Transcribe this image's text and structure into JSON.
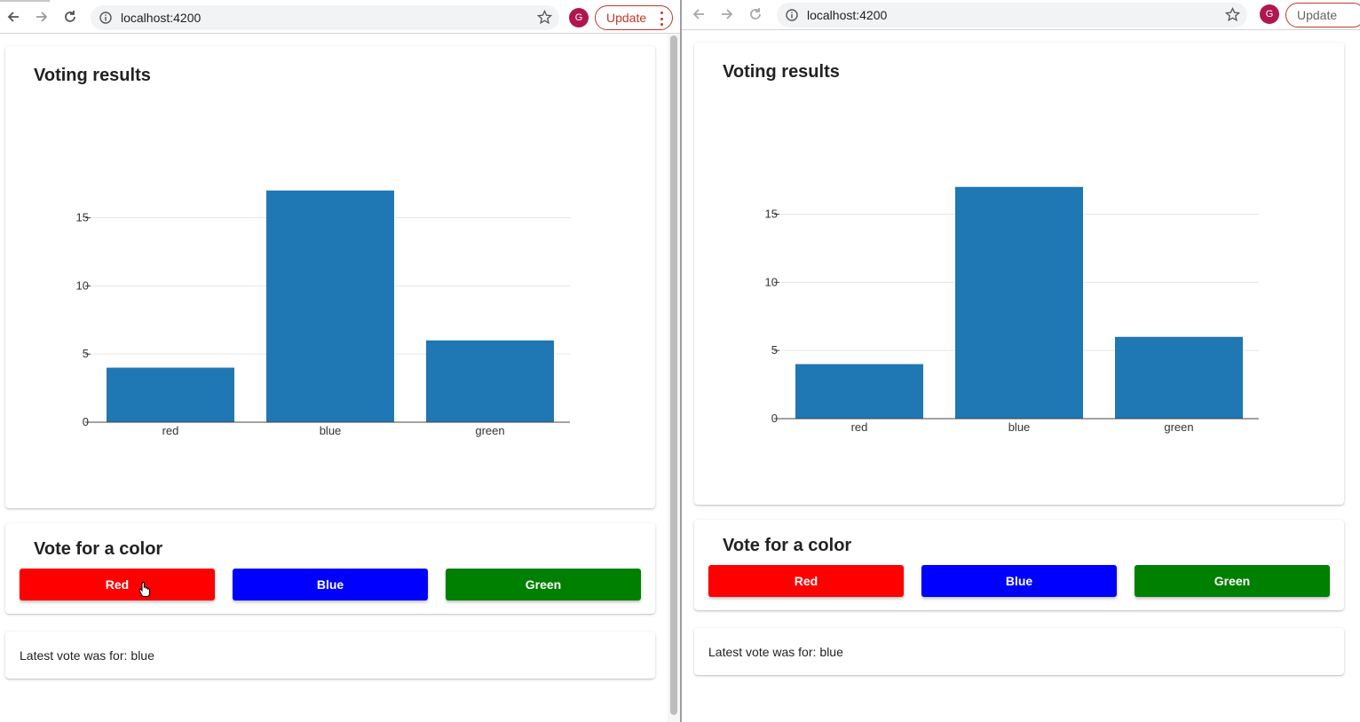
{
  "browser": {
    "url": "localhost:4200",
    "avatar_letter": "G",
    "update_label": "Update"
  },
  "app": {
    "results_title": "Voting results",
    "vote_title": "Vote for a color",
    "buttons": [
      {
        "label": "Red",
        "color": "#ff0000"
      },
      {
        "label": "Blue",
        "color": "#0000ff"
      },
      {
        "label": "Green",
        "color": "#008000"
      }
    ],
    "latest_prefix": "Latest vote was for:",
    "latest_value": "blue"
  },
  "chart_data": {
    "type": "bar",
    "categories": [
      "red",
      "blue",
      "green"
    ],
    "values": [
      4,
      17,
      6
    ],
    "ylim": [
      0,
      19
    ],
    "yticks": [
      0,
      5,
      10,
      15
    ],
    "bar_color": "#1f77b4",
    "grid": true
  },
  "colors": {
    "bar": "#1f77b4",
    "avatar": "#b0164f",
    "update_border": "#c0392b"
  }
}
